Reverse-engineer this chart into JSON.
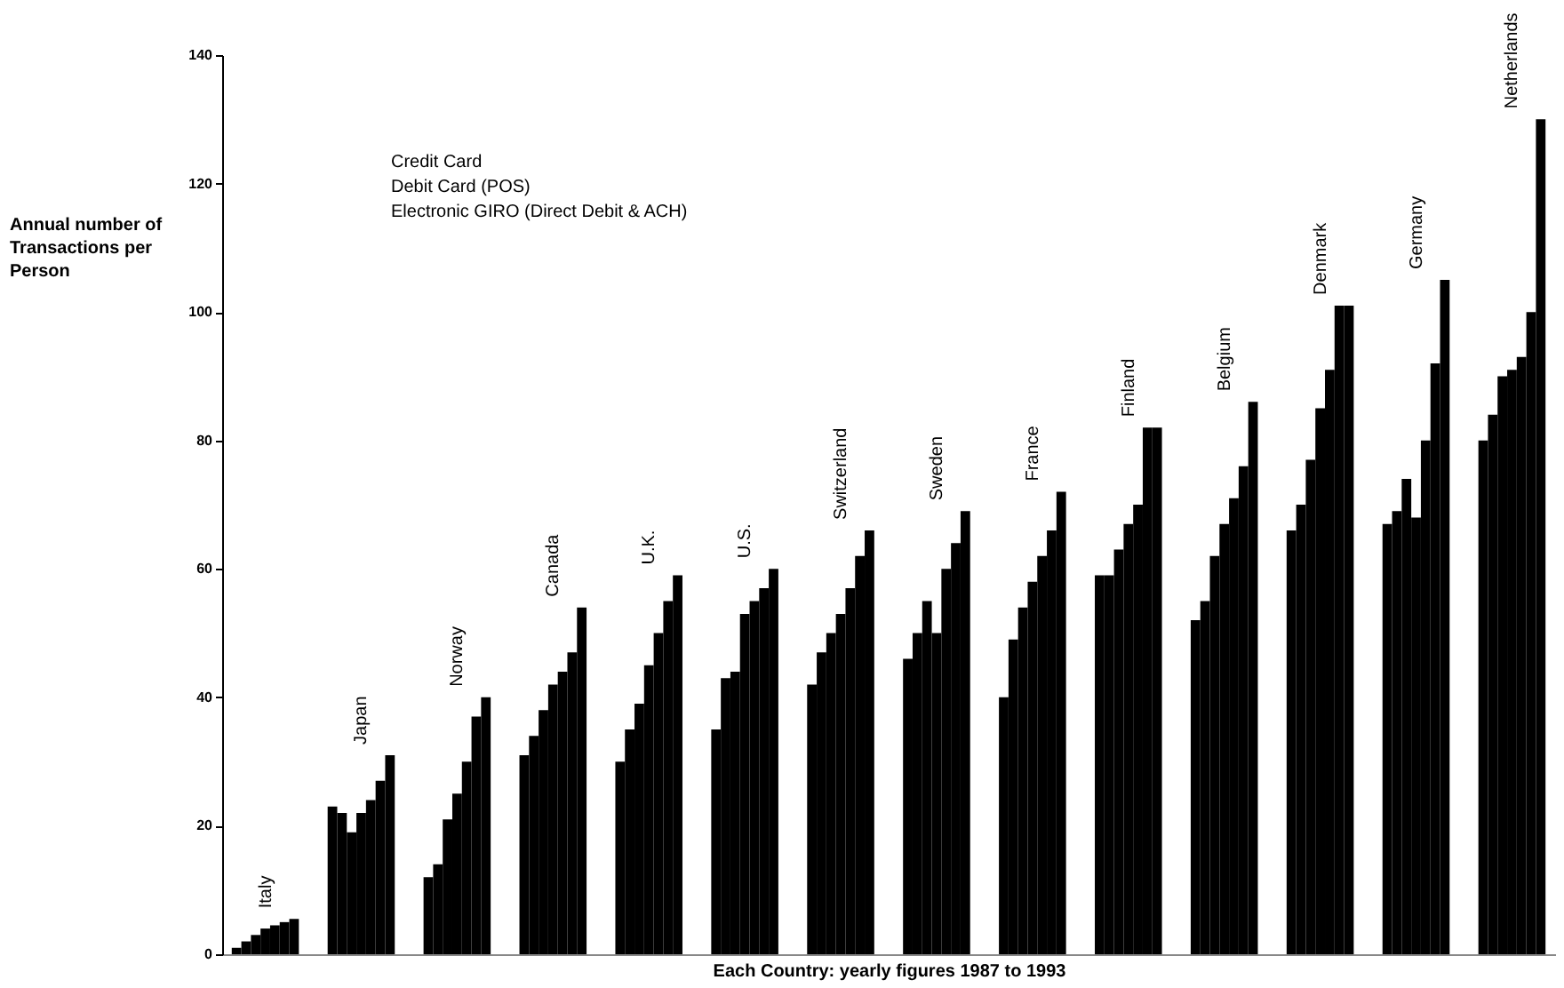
{
  "chart_data": {
    "type": "bar",
    "ylabel": "Annual number of Transactions per Person",
    "xlabel": "Each Country: yearly figures 1987 to 1993",
    "categories": [
      "Italy",
      "Japan",
      "Norway",
      "Canada",
      "U.K.",
      "U.S.",
      "Switzerland",
      "Sweden",
      "France",
      "Finland",
      "Belgium",
      "Denmark",
      "Germany",
      "Netherlands"
    ],
    "series": [
      {
        "color": "#000000",
        "values": [
          1,
          23,
          12,
          31,
          30,
          35,
          42,
          46,
          40,
          59,
          52,
          66,
          67,
          80
        ]
      },
      {
        "color": "#000000",
        "values": [
          2,
          22,
          14,
          34,
          35,
          43,
          47,
          50,
          49,
          59,
          55,
          70,
          69,
          84
        ]
      },
      {
        "color": "#000000",
        "values": [
          3,
          19,
          21,
          38,
          39,
          44,
          50,
          55,
          54,
          63,
          62,
          77,
          74,
          90
        ]
      },
      {
        "color": "#000000",
        "values": [
          4,
          22,
          25,
          42,
          45,
          53,
          53,
          50,
          58,
          67,
          67,
          85,
          68,
          91
        ]
      },
      {
        "color": "#000000",
        "values": [
          4.5,
          24,
          30,
          44,
          50,
          55,
          57,
          60,
          62,
          70,
          71,
          91,
          80,
          93
        ]
      },
      {
        "color": "#000000",
        "values": [
          5,
          27,
          37,
          47,
          55,
          57,
          62,
          64,
          66,
          82,
          76,
          101,
          92,
          100
        ]
      },
      {
        "color": "#000000",
        "values": [
          5.5,
          31,
          40,
          54,
          59,
          60,
          66,
          69,
          72,
          82,
          86,
          101,
          105,
          130
        ]
      }
    ],
    "ylim": [
      0,
      140
    ],
    "yticks": [
      0,
      20,
      40,
      60,
      80,
      100,
      120,
      140
    ],
    "grid": false,
    "annotations": [
      "Credit Card",
      "Debit Card (POS)",
      "Electronic GIRO (Direct Debit & ACH)"
    ]
  }
}
